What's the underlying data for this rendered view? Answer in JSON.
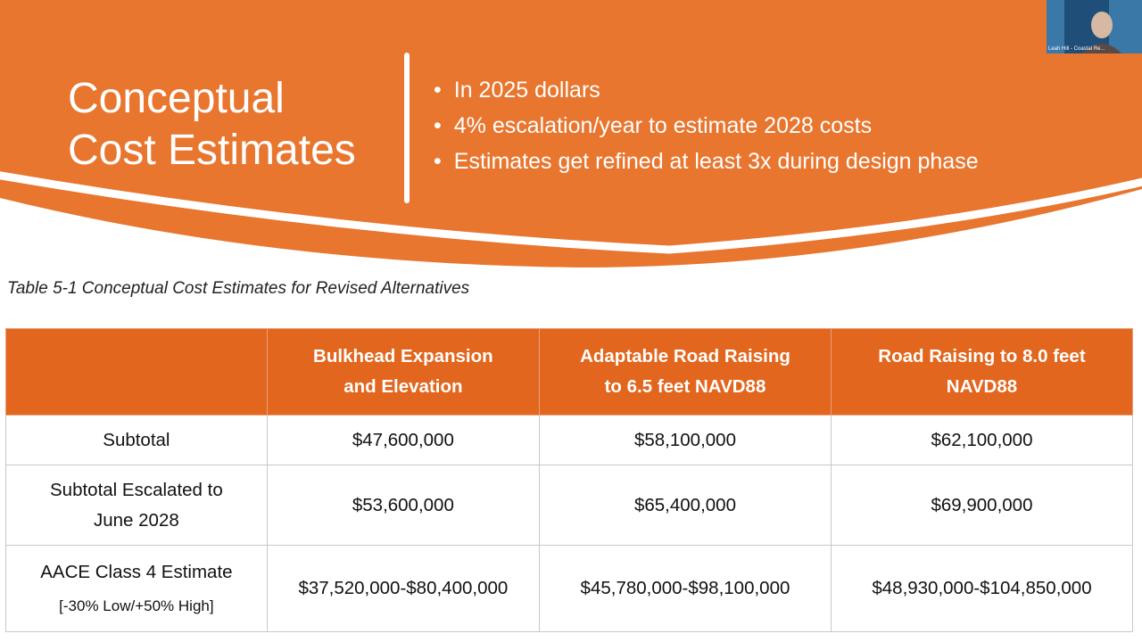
{
  "header": {
    "title_lines": [
      "Conceptual",
      "Cost Estimates"
    ],
    "bullets": [
      "In 2025 dollars",
      "4% escalation/year to estimate 2028 costs",
      "Estimates get refined at least 3x during design phase"
    ]
  },
  "caption": "Table 5-1 Conceptual Cost Estimates for Revised Alternatives",
  "table": {
    "columns": [
      [],
      [
        "Bulkhead Expansion",
        "and Elevation"
      ],
      [
        "Adaptable Road Raising",
        "to 6.5 feet NAVD88"
      ],
      [
        "Road Raising to 8.0 feet",
        "NAVD88"
      ]
    ],
    "rows": [
      [
        [
          "Subtotal"
        ],
        [
          "$47,600,000"
        ],
        [
          "$58,100,000"
        ],
        [
          "$62,100,000"
        ]
      ],
      [
        [
          "Subtotal Escalated to",
          "June 2028"
        ],
        [
          "$53,600,000"
        ],
        [
          "$65,400,000"
        ],
        [
          "$69,900,000"
        ]
      ],
      [
        [
          "AACE Class 4 Estimate",
          "[-30% Low/+50% High]"
        ],
        [
          "$37,520,000-$80,400,000"
        ],
        [
          "$45,780,000-$98,100,000"
        ],
        [
          "$48,930,000-$104,850,000"
        ]
      ]
    ]
  },
  "webcam_label": "Leah Hill - Coastal Re..."
}
